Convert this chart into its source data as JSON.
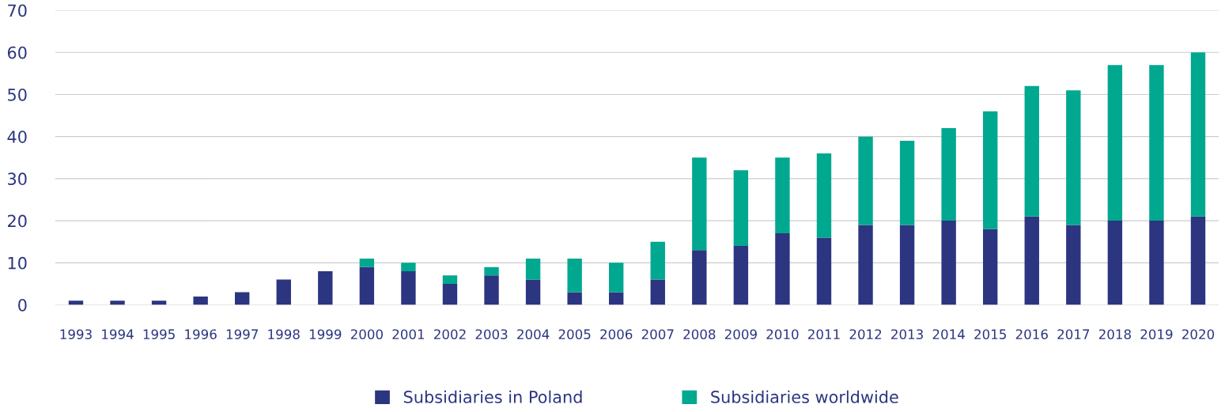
{
  "chart_data": {
    "type": "bar",
    "stacked": true,
    "categories": [
      "1993",
      "1994",
      "1995",
      "1996",
      "1997",
      "1998",
      "1999",
      "2000",
      "2001",
      "2002",
      "2003",
      "2004",
      "2005",
      "2006",
      "2007",
      "2008",
      "2009",
      "2010",
      "2011",
      "2012",
      "2013",
      "2014",
      "2015",
      "2016",
      "2017",
      "2018",
      "2019",
      "2020"
    ],
    "series": [
      {
        "name": "Subsidiaries in Poland",
        "color": "#2b3580",
        "values": [
          1,
          1,
          1,
          2,
          3,
          6,
          8,
          9,
          8,
          5,
          7,
          6,
          3,
          3,
          6,
          13,
          14,
          17,
          16,
          19,
          19,
          20,
          18,
          21,
          19,
          20,
          20,
          21
        ]
      },
      {
        "name": "Subsidiaries worldwide",
        "color": "#00a88f",
        "values": [
          null,
          null,
          null,
          null,
          null,
          null,
          null,
          2,
          2,
          2,
          2,
          5,
          8,
          7,
          9,
          22,
          18,
          18,
          20,
          21,
          20,
          22,
          28,
          31,
          32,
          37,
          37,
          39
        ]
      }
    ],
    "ylim": [
      0,
      70
    ],
    "yticks": [
      0,
      10,
      20,
      30,
      40,
      50,
      60,
      70
    ],
    "grid": "y",
    "legend": "bottom"
  }
}
